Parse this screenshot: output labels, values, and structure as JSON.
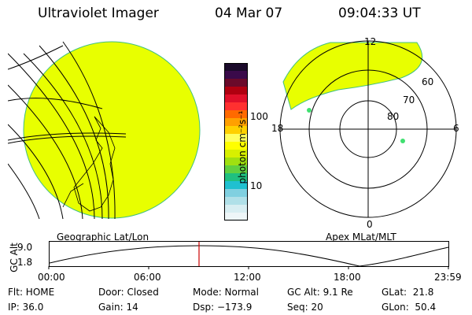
{
  "header": {
    "instrument": "Ultraviolet Imager",
    "date": "04 Mar 07",
    "time": "09:04:33 UT"
  },
  "colorbar": {
    "unit_label": "photon cm⁻²s⁻¹",
    "ticks": [
      "100",
      "10"
    ],
    "colors_top_to_bottom": [
      "#1a0a2a",
      "#3a0a4a",
      "#6a0a2a",
      "#b00010",
      "#e0102a",
      "#ff3030",
      "#ff6a00",
      "#ffa000",
      "#ffd000",
      "#ffff60",
      "#ffff00",
      "#d8f000",
      "#a0e010",
      "#60d040",
      "#20c080",
      "#20c0d0",
      "#80d0e0",
      "#b0e0e8",
      "#d8eef2",
      "#eef6f8"
    ]
  },
  "left_panel": {
    "caption": "Geographic Lat/Lon",
    "fill_color": "#e8ff00"
  },
  "right_panel": {
    "caption": "Apex MLat/MLT",
    "mlt_labels": {
      "top": "12",
      "bottom": "0",
      "left": "18",
      "right": "6"
    },
    "lat_labels": [
      "60",
      "70",
      "80"
    ],
    "fill_color": "#e8ff00"
  },
  "alt_plot": {
    "axis_label": "GC Alt",
    "y_ticks": [
      "9.0",
      "1.8"
    ],
    "x_ticks": [
      "00:00",
      "06:00",
      "12:00",
      "18:00",
      "23:59"
    ],
    "marker_color": "#cc0000"
  },
  "footer": {
    "flt": "Flt: HOME",
    "ip": "IP: 36.0",
    "door": "Door: Closed",
    "gain": "Gain: 14",
    "mode": "Mode: Normal",
    "dsp": "Dsp: −173.9",
    "gcalt": "GC Alt: 9.1 Re",
    "seq": "Seq: 20",
    "glat": "GLat:  21.8",
    "glon": "GLon:  50.4"
  }
}
